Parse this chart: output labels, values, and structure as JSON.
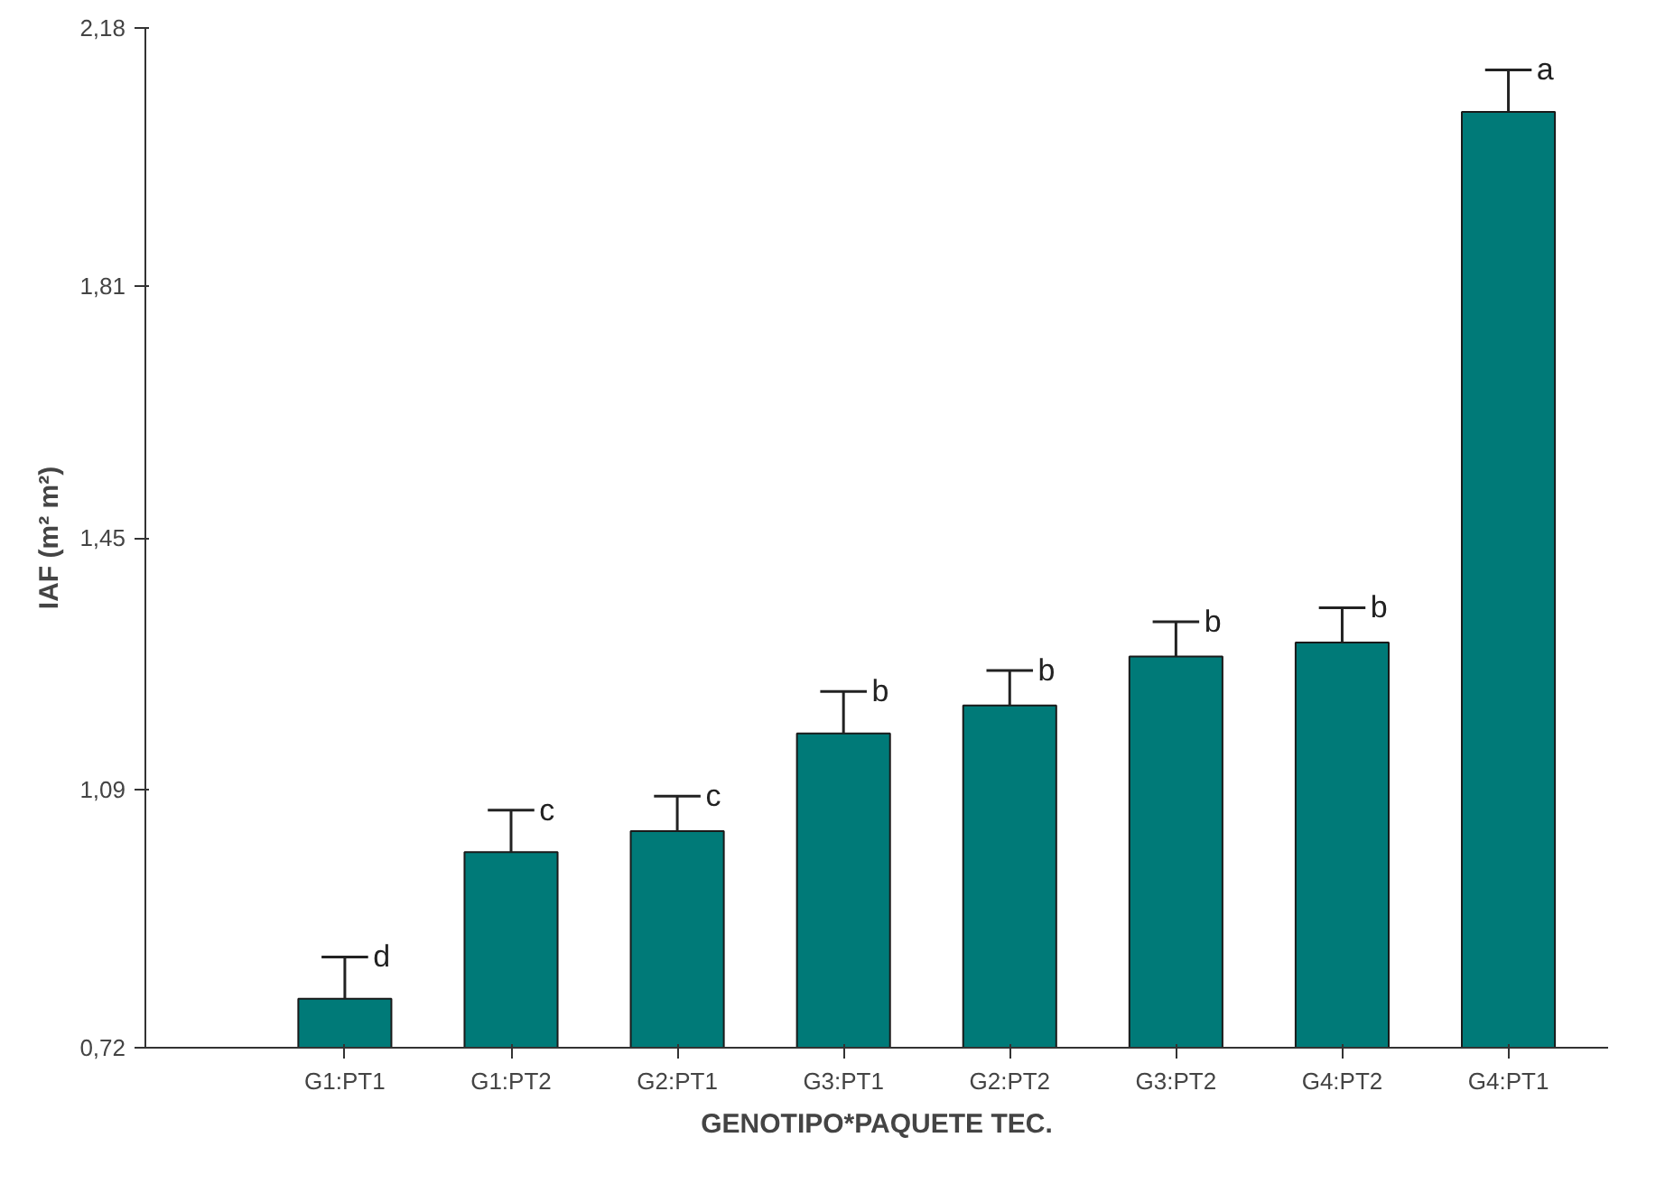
{
  "chart_data": {
    "type": "bar",
    "xlabel": "GENOTIPO*PAQUETE TEC.",
    "ylabel": "IAF (m² m²)",
    "categories": [
      "G1:PT1",
      "G1:PT2",
      "G2:PT1",
      "G3:PT1",
      "G2:PT2",
      "G3:PT2",
      "G4:PT2",
      "G4:PT1"
    ],
    "values": [
      0.79,
      1.0,
      1.03,
      1.17,
      1.21,
      1.28,
      1.3,
      2.06
    ],
    "errors": [
      [
        0.79,
        0.85
      ],
      [
        1.0,
        1.06
      ],
      [
        1.03,
        1.08
      ],
      [
        1.17,
        1.23
      ],
      [
        1.21,
        1.26
      ],
      [
        1.28,
        1.33
      ],
      [
        1.3,
        1.35
      ],
      [
        2.06,
        2.12
      ]
    ],
    "color": "#007a78",
    "ylim": [
      0.72,
      2.18
    ],
    "yticks": [
      {
        "value": 0.72,
        "label": "0,72"
      },
      {
        "value": 1.09,
        "label": "1,09"
      },
      {
        "value": 1.45,
        "label": "1,45"
      },
      {
        "value": 1.81,
        "label": "1,81"
      },
      {
        "value": 2.18,
        "label": "2,18"
      }
    ],
    "grid": false,
    "annotations": [
      {
        "text": "d",
        "x": "G1:PT1",
        "y": 0.85
      },
      {
        "text": "c",
        "x": "G1:PT2",
        "y": 1.06
      },
      {
        "text": "c",
        "x": "G2:PT1",
        "y": 1.08
      },
      {
        "text": "b",
        "x": "G3:PT1",
        "y": 1.23
      },
      {
        "text": "b",
        "x": "G2:PT2",
        "y": 1.26
      },
      {
        "text": "b",
        "x": "G3:PT2",
        "y": 1.33
      },
      {
        "text": "b",
        "x": "G4:PT2",
        "y": 1.35
      },
      {
        "text": "a",
        "x": "G4:PT1",
        "y": 2.12
      }
    ]
  }
}
